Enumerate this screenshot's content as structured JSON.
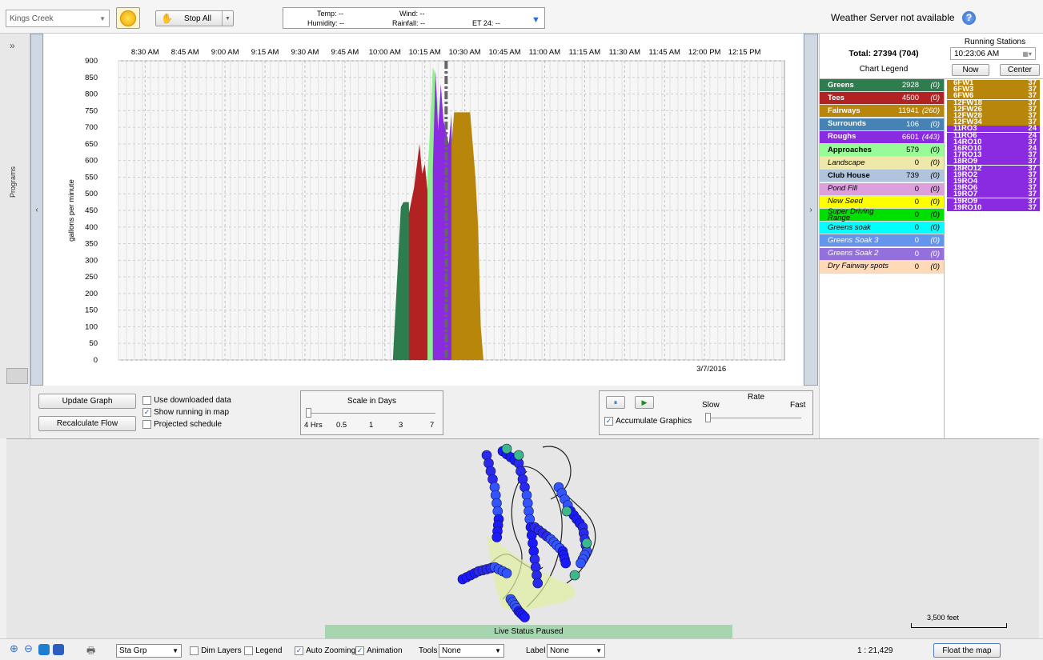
{
  "topbar": {
    "site": "Kings Creek",
    "stop_all": "Stop All",
    "weather": {
      "temp": "Temp: --",
      "wind": "Wind: --",
      "humidity": "Humidity: --",
      "rainfall": "Rainfall: --",
      "et24": "ET 24: --"
    },
    "server_status": "Weather Server not available"
  },
  "left": {
    "programs_label": "Programs",
    "expand_glyph": "»",
    "collapse_glyph": "‹"
  },
  "chart_data": {
    "type": "area",
    "ylabel": "gallons per minute",
    "ylim": [
      0,
      900
    ],
    "yticks": [
      0,
      50,
      100,
      150,
      200,
      250,
      300,
      350,
      400,
      450,
      500,
      550,
      600,
      650,
      700,
      750,
      800,
      850,
      900
    ],
    "xticks": [
      "8:30 AM",
      "8:45 AM",
      "9:00 AM",
      "9:15 AM",
      "9:30 AM",
      "9:45 AM",
      "10:00 AM",
      "10:15 AM",
      "10:30 AM",
      "10:45 AM",
      "11:00 AM",
      "11:15 AM",
      "11:30 AM",
      "11:45 AM",
      "12:00 PM",
      "12:15 PM"
    ],
    "date_label": "3/7/2016",
    "current_time": "10:23",
    "grid": true,
    "series": [
      {
        "name": "Greens",
        "color": "#2e7d4f",
        "points": [
          [
            "10:03",
            0
          ],
          [
            "10:06",
            460
          ],
          [
            "10:07",
            475
          ],
          [
            "10:09",
            475
          ],
          [
            "10:10",
            0
          ]
        ]
      },
      {
        "name": "Tees",
        "color": "#b32222",
        "points": [
          [
            "10:09",
            440
          ],
          [
            "10:11",
            520
          ],
          [
            "10:13",
            650
          ],
          [
            "10:14",
            560
          ],
          [
            "10:15",
            590
          ],
          [
            "10:16",
            510
          ],
          [
            "10:17",
            590
          ],
          [
            "10:18",
            80
          ],
          [
            "10:19",
            20
          ],
          [
            "10:20",
            0
          ]
        ]
      },
      {
        "name": "Approaches",
        "color": "#90ee90",
        "points": [
          [
            "10:16",
            560
          ],
          [
            "10:17",
            700
          ],
          [
            "10:18",
            880
          ],
          [
            "10:19",
            860
          ],
          [
            "10:20",
            760
          ],
          [
            "10:21",
            0
          ]
        ]
      },
      {
        "name": "Roughs",
        "color": "#8a2be2",
        "points": [
          [
            "10:18",
            570
          ],
          [
            "10:19",
            870
          ],
          [
            "10:20",
            690
          ],
          [
            "10:21",
            830
          ],
          [
            "10:22",
            720
          ],
          [
            "10:24",
            650
          ],
          [
            "10:25",
            740
          ],
          [
            "10:26",
            0
          ]
        ]
      },
      {
        "name": "Fairways",
        "color": "#b8860b",
        "points": [
          [
            "10:25",
            650
          ],
          [
            "10:26",
            745
          ],
          [
            "10:32",
            745
          ],
          [
            "10:34",
            550
          ],
          [
            "10:35",
            400
          ],
          [
            "10:36",
            100
          ],
          [
            "10:37",
            0
          ]
        ]
      }
    ]
  },
  "controls": {
    "update_graph": "Update Graph",
    "recalculate_flow": "Recalculate Flow",
    "use_downloaded": "Use downloaded data",
    "show_running": "Show running in map",
    "projected": "Projected schedule",
    "scale_title": "Scale in Days",
    "scale_ticks": [
      "4 Hrs",
      "0.5",
      "1",
      "3",
      "7"
    ],
    "accumulate": "Accumulate Graphics",
    "rate_title": "Rate",
    "slow": "Slow",
    "fast": "Fast"
  },
  "legend": {
    "total": "Total: 27394 (704)",
    "chart_legend": "Chart Legend",
    "running_stations": "Running Stations",
    "time": "10:23:06 AM",
    "now": "Now",
    "center": "Center",
    "items": [
      {
        "name": "Greens",
        "val": "2928",
        "paren": "(0)",
        "bg": "#2e7d4f",
        "fg": "#ffffff",
        "bold": true
      },
      {
        "name": "Tees",
        "val": "4500",
        "paren": "(0)",
        "bg": "#b32222",
        "fg": "#ffffff",
        "bold": true
      },
      {
        "name": "Fairways",
        "val": "11941",
        "paren": "(260)",
        "bg": "#b8860b",
        "fg": "#ffffff",
        "bold": true
      },
      {
        "name": "Surrounds",
        "val": "106",
        "paren": "(0)",
        "bg": "#4682b4",
        "fg": "#ffffff",
        "bold": true
      },
      {
        "name": "Roughs",
        "val": "6601",
        "paren": "(443)",
        "bg": "#8a2be2",
        "fg": "#ffffff",
        "bold": true
      },
      {
        "name": "Approaches",
        "val": "579",
        "paren": "(0)",
        "bg": "#98fb98",
        "fg": "#000000",
        "bold": true
      },
      {
        "name": "Landscape",
        "val": "0",
        "paren": "(0)",
        "bg": "#eee8aa",
        "fg": "#000000",
        "bold": false
      },
      {
        "name": "Club House",
        "val": "739",
        "paren": "(0)",
        "bg": "#b0c4de",
        "fg": "#000000",
        "bold": true
      },
      {
        "name": "Pond Fill",
        "val": "0",
        "paren": "(0)",
        "bg": "#dda0dd",
        "fg": "#000000",
        "bold": false
      },
      {
        "name": "New Seed",
        "val": "0",
        "paren": "(0)",
        "bg": "#ffff00",
        "fg": "#000000",
        "bold": false
      },
      {
        "name": "Super Driving Range",
        "val": "0",
        "paren": "(0)",
        "bg": "#00e000",
        "fg": "#000000",
        "bold": false
      },
      {
        "name": "Greens soak",
        "val": "0",
        "paren": "(0)",
        "bg": "#00ffff",
        "fg": "#000000",
        "bold": false
      },
      {
        "name": "Greens Soak 3",
        "val": "0",
        "paren": "(0)",
        "bg": "#6495ed",
        "fg": "#ffffff",
        "bold": false
      },
      {
        "name": "Greens Soak 2",
        "val": "0",
        "paren": "(0)",
        "bg": "#9370db",
        "fg": "#ffffff",
        "bold": false
      },
      {
        "name": "Dry Fairway spots",
        "val": "0",
        "paren": "(0)",
        "bg": "#ffdab9",
        "fg": "#000000",
        "bold": false
      }
    ],
    "stations": [
      {
        "id": "6FW1",
        "n": "37",
        "bg": "#b8860b"
      },
      {
        "id": "6FW3",
        "n": "37",
        "bg": "#b8860b"
      },
      {
        "id": "6FW6",
        "n": "37",
        "bg": "#b8860b"
      },
      {
        "id": "12FW18",
        "n": "37",
        "bg": "#b8860b"
      },
      {
        "id": "12FW26",
        "n": "37",
        "bg": "#b8860b"
      },
      {
        "id": "12FW28",
        "n": "37",
        "bg": "#b8860b"
      },
      {
        "id": "12FW34",
        "n": "37",
        "bg": "#b8860b"
      },
      {
        "id": "11RO3",
        "n": "24",
        "bg": "#8a2be2"
      },
      {
        "id": "11RO6",
        "n": "24",
        "bg": "#8a2be2"
      },
      {
        "id": "14RO10",
        "n": "37",
        "bg": "#8a2be2"
      },
      {
        "id": "16RO10",
        "n": "24",
        "bg": "#8a2be2"
      },
      {
        "id": "17RO13",
        "n": "37",
        "bg": "#8a2be2"
      },
      {
        "id": "18RO9",
        "n": "37",
        "bg": "#8a2be2"
      },
      {
        "id": "18RO12",
        "n": "37",
        "bg": "#8a2be2"
      },
      {
        "id": "19RO2",
        "n": "37",
        "bg": "#8a2be2"
      },
      {
        "id": "19RO4",
        "n": "37",
        "bg": "#8a2be2"
      },
      {
        "id": "19RO6",
        "n": "37",
        "bg": "#8a2be2"
      },
      {
        "id": "19RO7",
        "n": "37",
        "bg": "#8a2be2"
      },
      {
        "id": "19RO9",
        "n": "37",
        "bg": "#8a2be2"
      },
      {
        "id": "19RO10",
        "n": "37",
        "bg": "#8a2be2"
      }
    ]
  },
  "map": {
    "status": "Live Status Paused",
    "scale_label": "3,500 feet"
  },
  "bottombar": {
    "layer_select": "Sta Grp",
    "dim_layers": "Dim Layers",
    "legend": "Legend",
    "auto_zooming": "Auto Zooming",
    "animation": "Animation",
    "tools_label": "Tools",
    "tools_value": "None",
    "label_label": "Label",
    "label_value": "None",
    "ratio": "1 : 21,429",
    "float_map": "Float the map"
  }
}
